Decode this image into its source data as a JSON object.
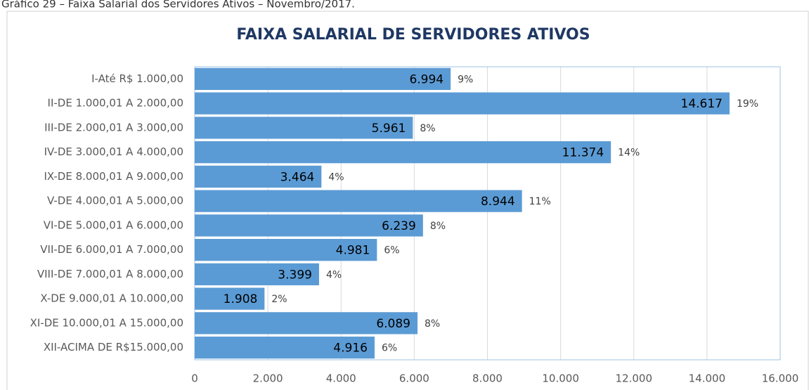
{
  "caption": "Gráfico 29 – Faixa Salarial dos Servidores Ativos – Novembro/2017.",
  "chart_data": {
    "type": "hbar",
    "title": "FAIXA SALARIAL DE SERVIDORES ATIVOS",
    "categories": [
      "I-Até R$ 1.000,00",
      "II-DE 1.000,01 A 2.000,00",
      "III-DE 2.000,01 A 3.000,00",
      "IV-DE 3.000,01 A 4.000,00",
      "IX-DE 8.000,01 A 9.000,00",
      "V-DE 4.000,01 A 5.000,00",
      "VI-DE 5.000,01 A 6.000,00",
      "VII-DE 6.000,01 A 7.000,00",
      "VIII-DE 7.000,01 A 8.000,00",
      "X-DE 9.000,01 A 10.000,00",
      "XI-DE 10.000,01 A 15.000,00",
      "XII-ACIMA DE R$15.000,00"
    ],
    "values": [
      6994,
      14617,
      5961,
      11374,
      3464,
      8944,
      6239,
      4981,
      3399,
      1908,
      6089,
      4916
    ],
    "value_labels": [
      "6.994",
      "14.617",
      "5.961",
      "11.374",
      "3.464",
      "8.944",
      "6.239",
      "4.981",
      "3.399",
      "1.908",
      "6.089",
      "4.916"
    ],
    "percent_labels": [
      "9%",
      "19%",
      "8%",
      "14%",
      "4%",
      "11%",
      "8%",
      "6%",
      "4%",
      "2%",
      "8%",
      "6%"
    ],
    "color": "#5b9bd5",
    "xlim": [
      0,
      16000
    ],
    "xticks": [
      0,
      {
        "value": 2000,
        "label": "2.000"
      },
      {
        "value": 4000,
        "label": "4.000"
      },
      {
        "value": 6000,
        "label": "6.000"
      },
      {
        "value": 8000,
        "label": "8.000"
      },
      {
        "value": 10000,
        "label": "10.000"
      },
      {
        "value": 12000,
        "label": "12.000"
      },
      {
        "value": 14000,
        "label": "14.000"
      },
      {
        "value": 16000,
        "label": "16.000"
      }
    ],
    "grid": true
  }
}
